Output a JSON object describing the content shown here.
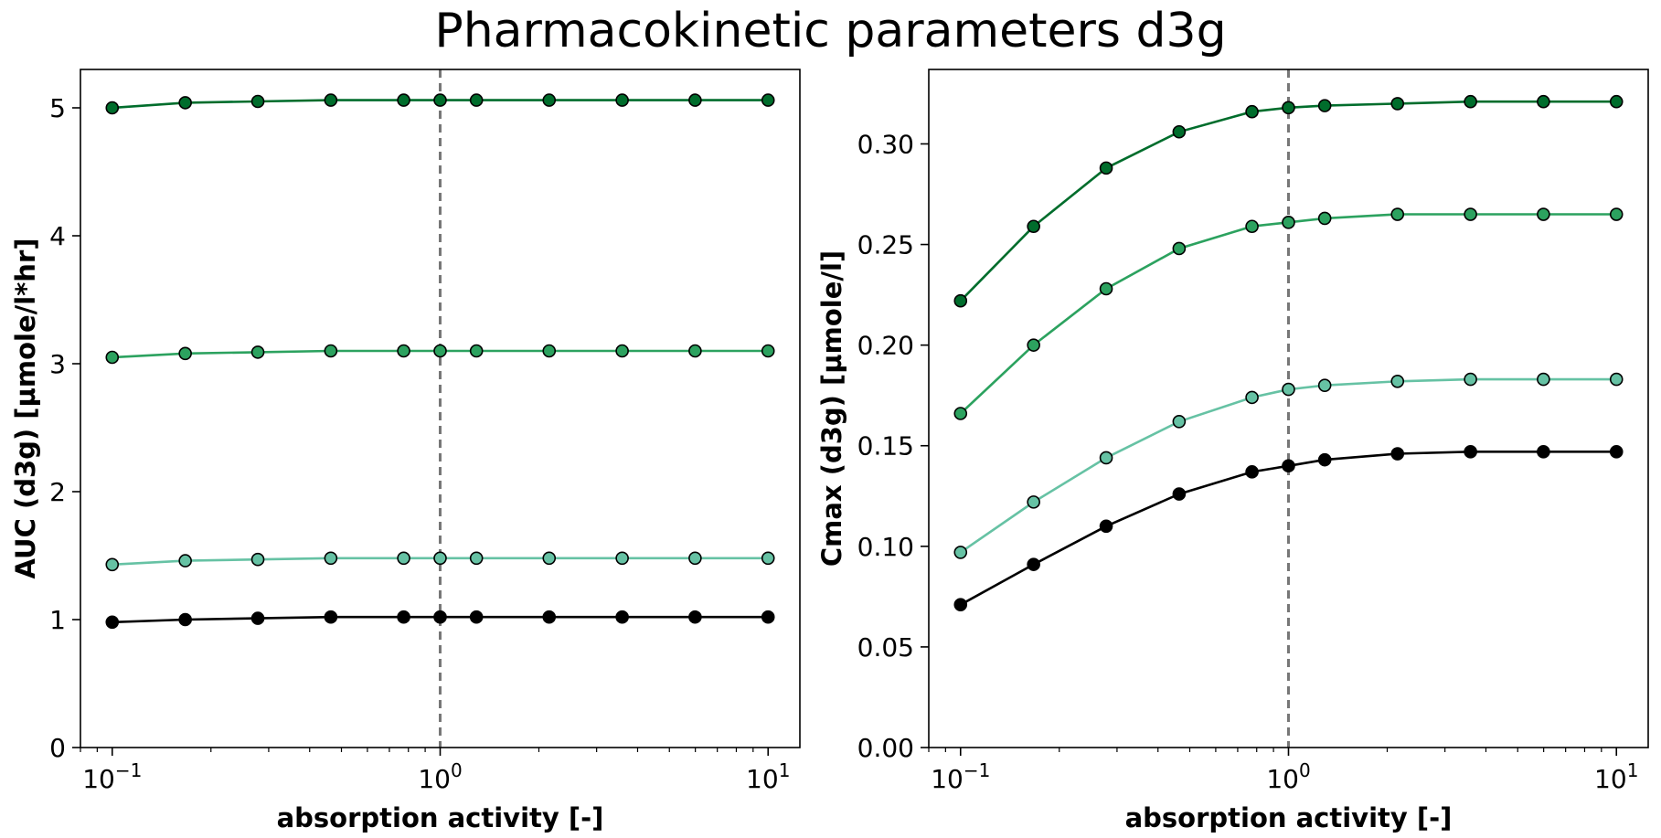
{
  "title": "Pharmacokinetic parameters d3g",
  "colors": {
    "series": [
      "#000000",
      "#66c2a4",
      "#2ca25f",
      "#006d2c"
    ],
    "vline": "#777777",
    "axis": "#000000"
  },
  "chart_data": [
    {
      "type": "line",
      "xlabel": "absorption activity [-]",
      "ylabel": "AUC (d3g) [µmole/l*hr]",
      "xscale": "log",
      "xlim": [
        0.08,
        12.5
      ],
      "ylim": [
        0,
        5.3
      ],
      "xticks": [
        0.1,
        1,
        10
      ],
      "xtick_labels": [
        [
          "10",
          "−1"
        ],
        [
          "10",
          "0"
        ],
        [
          "10",
          "1"
        ]
      ],
      "yticks": [
        0,
        1,
        2,
        3,
        4,
        5
      ],
      "ytick_labels": [
        "0",
        "1",
        "2",
        "3",
        "4",
        "5"
      ],
      "vline_x": 1,
      "grid": false,
      "x": [
        0.1,
        0.167,
        0.278,
        0.464,
        0.774,
        1.0,
        1.29,
        2.15,
        3.59,
        5.99,
        10.0
      ],
      "series": [
        {
          "values": [
            0.98,
            1.0,
            1.01,
            1.02,
            1.02,
            1.02,
            1.02,
            1.02,
            1.02,
            1.02,
            1.02
          ]
        },
        {
          "values": [
            1.43,
            1.46,
            1.47,
            1.48,
            1.48,
            1.48,
            1.48,
            1.48,
            1.48,
            1.48,
            1.48
          ]
        },
        {
          "values": [
            3.05,
            3.08,
            3.09,
            3.1,
            3.1,
            3.1,
            3.1,
            3.1,
            3.1,
            3.1,
            3.1
          ]
        },
        {
          "values": [
            5.0,
            5.04,
            5.05,
            5.06,
            5.06,
            5.06,
            5.06,
            5.06,
            5.06,
            5.06,
            5.06
          ]
        }
      ]
    },
    {
      "type": "line",
      "xlabel": "absorption activity [-]",
      "ylabel": "Cmax (d3g) [µmole/l]",
      "xscale": "log",
      "xlim": [
        0.08,
        12.5
      ],
      "ylim": [
        0,
        0.337
      ],
      "xticks": [
        0.1,
        1,
        10
      ],
      "xtick_labels": [
        [
          "10",
          "−1"
        ],
        [
          "10",
          "0"
        ],
        [
          "10",
          "1"
        ]
      ],
      "yticks": [
        0,
        0.05,
        0.1,
        0.15,
        0.2,
        0.25,
        0.3
      ],
      "ytick_labels": [
        "0.00",
        "0.05",
        "0.10",
        "0.15",
        "0.20",
        "0.25",
        "0.30"
      ],
      "vline_x": 1,
      "grid": false,
      "x": [
        0.1,
        0.167,
        0.278,
        0.464,
        0.774,
        1.0,
        1.29,
        2.15,
        3.59,
        5.99,
        10.0
      ],
      "series": [
        {
          "values": [
            0.071,
            0.091,
            0.11,
            0.126,
            0.137,
            0.14,
            0.143,
            0.146,
            0.147,
            0.147,
            0.147
          ]
        },
        {
          "values": [
            0.097,
            0.122,
            0.144,
            0.162,
            0.174,
            0.178,
            0.18,
            0.182,
            0.183,
            0.183,
            0.183
          ]
        },
        {
          "values": [
            0.166,
            0.2,
            0.228,
            0.248,
            0.259,
            0.261,
            0.263,
            0.265,
            0.265,
            0.265,
            0.265
          ]
        },
        {
          "values": [
            0.222,
            0.259,
            0.288,
            0.306,
            0.316,
            0.318,
            0.319,
            0.32,
            0.321,
            0.321,
            0.321
          ]
        }
      ]
    }
  ]
}
